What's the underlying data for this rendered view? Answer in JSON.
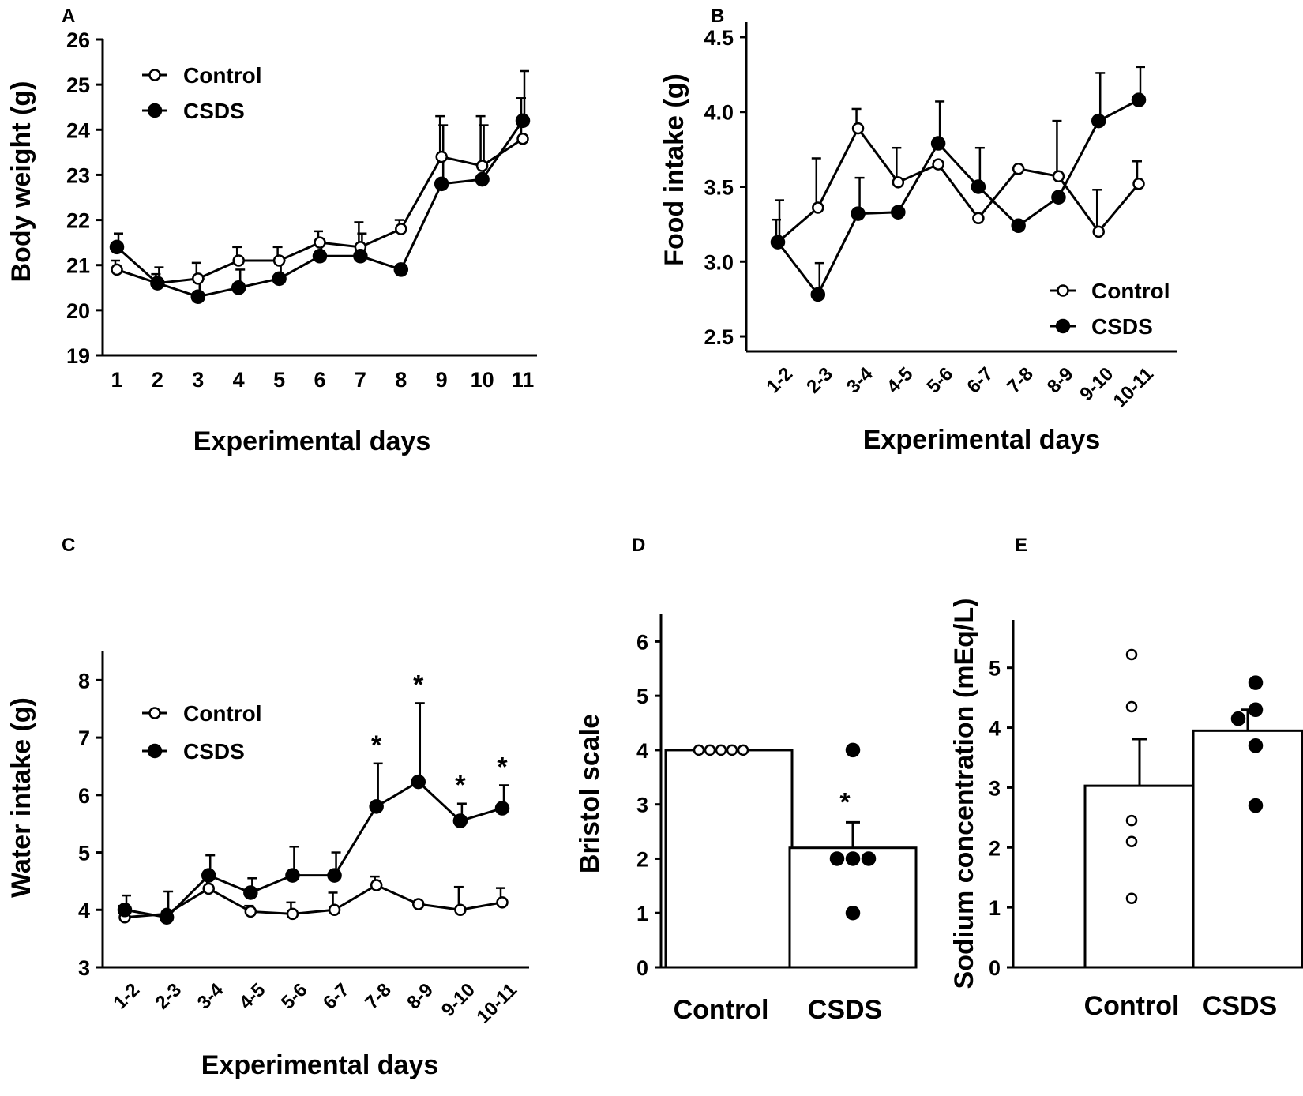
{
  "chart_data": [
    {
      "id": "A",
      "panel_label": "A",
      "type": "line",
      "xlabel": "Experimental days",
      "ylabel": "Body weight (g)",
      "ylim": [
        19,
        26
      ],
      "yticks": [
        "19",
        "20",
        "21",
        "22",
        "23",
        "24",
        "25",
        "26"
      ],
      "categories": [
        "1",
        "2",
        "3",
        "4",
        "5",
        "6",
        "7",
        "8",
        "9",
        "10",
        "11"
      ],
      "legend": {
        "position": "top-left",
        "entries": [
          "Control",
          "CSDS"
        ]
      },
      "series": [
        {
          "name": "Control",
          "marker": "open-circle",
          "values": [
            20.9,
            20.6,
            20.7,
            21.1,
            21.1,
            21.5,
            21.4,
            21.8,
            23.4,
            23.2,
            23.8
          ],
          "errors": [
            0.2,
            0.2,
            0.35,
            0.3,
            0.3,
            0.25,
            0.55,
            0.2,
            0.9,
            1.1,
            0.9
          ]
        },
        {
          "name": "CSDS",
          "marker": "filled-circle",
          "values": [
            21.4,
            20.6,
            20.3,
            20.5,
            20.7,
            21.2,
            21.2,
            20.9,
            22.8,
            22.9,
            24.2
          ],
          "errors": [
            0.3,
            0.35,
            0.4,
            0.4,
            0.4,
            0.3,
            0.5,
            0.0,
            1.3,
            1.2,
            1.1
          ]
        }
      ]
    },
    {
      "id": "B",
      "panel_label": "B",
      "type": "line",
      "xlabel": "Experimental days",
      "ylabel": "Food intake (g)",
      "ylim": [
        2.4,
        4.6
      ],
      "yticks": [
        "2.5",
        "3.0",
        "3.5",
        "4.0",
        "4.5"
      ],
      "categories": [
        "1-2",
        "2-3",
        "3-4",
        "4-5",
        "5-6",
        "6-7",
        "7-8",
        "8-9",
        "9-10",
        "10-11"
      ],
      "legend": {
        "position": "bottom-right",
        "entries": [
          "Control",
          "CSDS"
        ]
      },
      "series": [
        {
          "name": "Control",
          "marker": "open-circle",
          "values": [
            3.13,
            3.36,
            3.89,
            3.53,
            3.65,
            3.29,
            3.62,
            3.57,
            3.2,
            3.52
          ],
          "errors": [
            0.15,
            0.33,
            0.13,
            0.23,
            0.0,
            0.0,
            0.0,
            0.37,
            0.28,
            0.15
          ]
        },
        {
          "name": "CSDS",
          "marker": "filled-circle",
          "values": [
            3.13,
            2.78,
            3.32,
            3.33,
            3.79,
            3.5,
            3.24,
            3.43,
            3.94,
            4.08
          ],
          "errors": [
            0.28,
            0.21,
            0.24,
            0.0,
            0.28,
            0.26,
            0.0,
            0.0,
            0.32,
            0.22
          ]
        }
      ]
    },
    {
      "id": "C",
      "panel_label": "C",
      "type": "line",
      "xlabel": "Experimental days",
      "ylabel": "Water intake (g)",
      "ylim": [
        3,
        8.5
      ],
      "yticks": [
        "3",
        "4",
        "5",
        "6",
        "7",
        "8"
      ],
      "categories": [
        "1-2",
        "2-3",
        "3-4",
        "4-5",
        "5-6",
        "6-7",
        "7-8",
        "8-9",
        "9-10",
        "10-11"
      ],
      "legend": {
        "position": "top-left",
        "entries": [
          "Control",
          "CSDS"
        ]
      },
      "significance": [
        "",
        "",
        "",
        "",
        "",
        "",
        "*",
        "*",
        "*",
        "*"
      ],
      "series": [
        {
          "name": "Control",
          "marker": "open-circle",
          "values": [
            3.87,
            3.93,
            4.37,
            3.97,
            3.93,
            4.0,
            4.43,
            4.1,
            4.0,
            4.13
          ],
          "errors": [
            0.2,
            0.0,
            0.2,
            0.1,
            0.2,
            0.3,
            0.15,
            0.0,
            0.4,
            0.25
          ]
        },
        {
          "name": "CSDS",
          "marker": "filled-circle",
          "values": [
            4.0,
            3.87,
            4.6,
            4.3,
            4.6,
            4.6,
            5.8,
            6.23,
            5.55,
            5.77
          ],
          "errors": [
            0.25,
            0.45,
            0.35,
            0.25,
            0.5,
            0.4,
            0.75,
            1.37,
            0.3,
            0.4
          ]
        }
      ]
    },
    {
      "id": "D",
      "panel_label": "D",
      "type": "bar",
      "xlabel": "",
      "ylabel": "Bristol scale",
      "ylim": [
        0,
        6.5
      ],
      "yticks": [
        "0",
        "1",
        "2",
        "3",
        "4",
        "5",
        "6"
      ],
      "categories": [
        "Control",
        "CSDS"
      ],
      "values": [
        4.0,
        2.2
      ],
      "errors": [
        0.0,
        0.47
      ],
      "significance": [
        "",
        "*"
      ],
      "points": [
        [
          4,
          4,
          4,
          4,
          4
        ],
        [
          4,
          2,
          2,
          2,
          1
        ]
      ]
    },
    {
      "id": "E",
      "panel_label": "E",
      "type": "bar",
      "xlabel": "",
      "ylabel": "Sodium concentration (mEq/L)",
      "ylim": [
        0,
        5.8
      ],
      "yticks": [
        "0",
        "1",
        "2",
        "3",
        "4",
        "5"
      ],
      "categories": [
        "Control",
        "CSDS"
      ],
      "values": [
        3.03,
        3.95
      ],
      "errors": [
        0.78,
        0.35
      ],
      "significance": [
        "",
        ""
      ],
      "points": [
        [
          5.22,
          4.35,
          2.45,
          2.1,
          1.15
        ],
        [
          4.75,
          4.3,
          4.15,
          3.7,
          2.7
        ]
      ]
    }
  ]
}
